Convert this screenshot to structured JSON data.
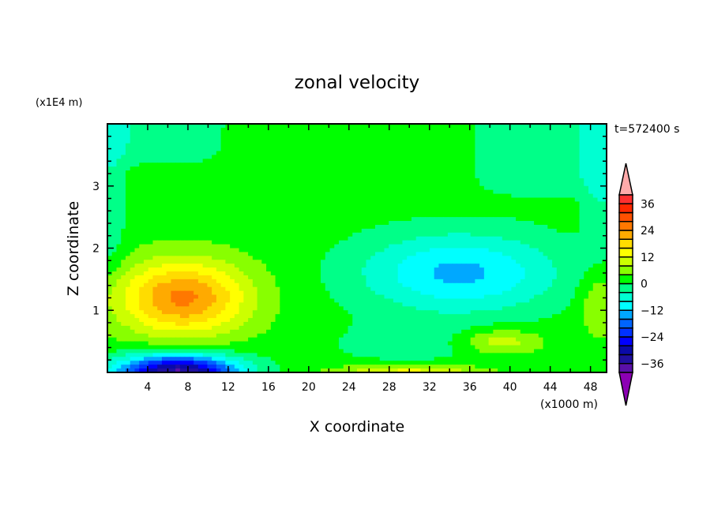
{
  "chart_data": {
    "type": "heatmap",
    "subtype": "filled-contour",
    "title": "zonal velocity",
    "xlabel": "X coordinate",
    "ylabel": "Z coordinate",
    "x_unit_label": "(x1000 m)",
    "y_unit_label": "(x1E4 m)",
    "time_label": "t=572400 s",
    "xlim": [
      0,
      49.6
    ],
    "ylim": [
      0,
      4
    ],
    "x_ticks": [
      4,
      8,
      12,
      16,
      20,
      24,
      28,
      32,
      36,
      40,
      44,
      48
    ],
    "x_tick_labels": [
      "4",
      "8",
      "12",
      "16",
      "20",
      "24",
      "28",
      "32",
      "36",
      "40",
      "44",
      "48"
    ],
    "y_ticks": [
      1,
      2,
      3
    ],
    "y_tick_labels": [
      "1",
      "2",
      "3"
    ],
    "levels": [
      -40,
      -36,
      -32,
      -28,
      -24,
      -20,
      -16,
      -12,
      -8,
      -4,
      0,
      4,
      8,
      12,
      16,
      20,
      24,
      28,
      32,
      36,
      40
    ],
    "colorbar_ticks": [
      36,
      24,
      12,
      0,
      -12,
      -24,
      -36
    ],
    "colorbar_tick_labels": [
      "36",
      "24",
      "12",
      "0",
      "−12",
      "−24",
      "−36"
    ],
    "colors": [
      "#5a10a8",
      "#200fa0",
      "#0a0aa8",
      "#0000ff",
      "#0032ff",
      "#0064ff",
      "#00a8ff",
      "#00ffff",
      "#00ffd2",
      "#00ff88",
      "#00ff00",
      "#88ff00",
      "#ccff00",
      "#ffff00",
      "#ffdc00",
      "#ffaa00",
      "#ff7800",
      "#ff5000",
      "#ff2800",
      "#ff3030"
    ],
    "over_color": "#ffaaaa",
    "under_color": "#8c00b4",
    "field_features": [
      {
        "name": "positive jet core",
        "x": 7.5,
        "z": 1.2,
        "peak": 23,
        "sx": 6.5,
        "sz": 0.6
      },
      {
        "name": "negative surface flow",
        "x": 7,
        "z": 0.0,
        "peak": -39,
        "sx": 6,
        "sz": 0.28
      },
      {
        "name": "negative return flow",
        "x": 35,
        "z": 1.6,
        "peak": -15,
        "sx": 10,
        "sz": 0.65
      },
      {
        "name": "positive surface band",
        "x": 30,
        "z": 0.0,
        "peak": 12,
        "sx": 7,
        "sz": 0.12
      },
      {
        "name": "positive low patch",
        "x": 39,
        "z": 0.5,
        "peak": 9,
        "sx": 4,
        "sz": 0.2
      }
    ]
  }
}
